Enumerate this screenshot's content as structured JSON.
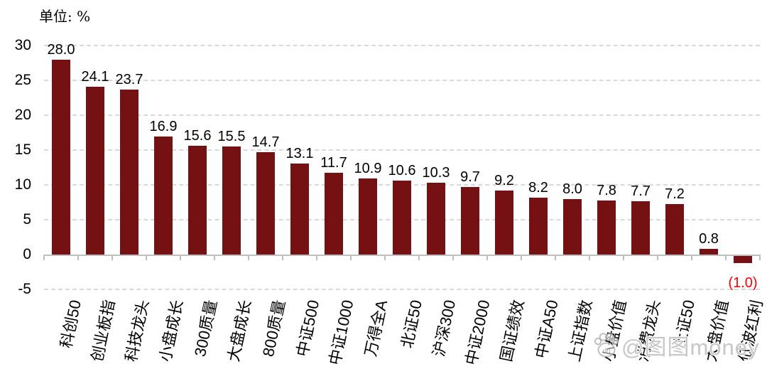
{
  "unit_label": "单位: %",
  "watermark": {
    "icon": "baidu-paw-icon",
    "text": "@图图money"
  },
  "chart_data": {
    "type": "bar",
    "title": "",
    "unit": "%",
    "categories": [
      "科创50",
      "创业板指",
      "科技龙头",
      "小盘成长",
      "300质量",
      "大盘成长",
      "800质量",
      "中证500",
      "中证1000",
      "万得全A",
      "北证50",
      "沪深300",
      "中证2000",
      "国证绩效",
      "中证A50",
      "上证指数",
      "小盘价值",
      "消费龙头",
      "上证50",
      "大盘价值",
      "低波红利"
    ],
    "values": [
      28.0,
      24.1,
      23.7,
      16.9,
      15.6,
      15.5,
      14.7,
      13.1,
      11.7,
      10.9,
      10.6,
      10.3,
      9.7,
      9.2,
      8.2,
      8.0,
      7.8,
      7.7,
      7.2,
      0.8,
      -1.0
    ],
    "value_labels": [
      "28.0",
      "24.1",
      "23.7",
      "16.9",
      "15.6",
      "15.5",
      "14.7",
      "13.1",
      "11.7",
      "10.9",
      "10.6",
      "10.3",
      "9.7",
      "9.2",
      "8.2",
      "8.0",
      "7.8",
      "7.7",
      "7.2",
      "0.8",
      "(1.0)"
    ],
    "xlabel": "",
    "ylabel": "",
    "ylim": [
      -5,
      30
    ],
    "yticks": [
      30,
      25,
      20,
      15,
      10,
      5,
      0,
      -5
    ],
    "grid": "horizontal dashed",
    "legend": "none",
    "bar_color": "#751113",
    "value_label_color": "#000000",
    "negative_value_label_color": "#ff0000",
    "gridline_color": "#d9d9d9",
    "axis_color": "#bfbfbf"
  }
}
